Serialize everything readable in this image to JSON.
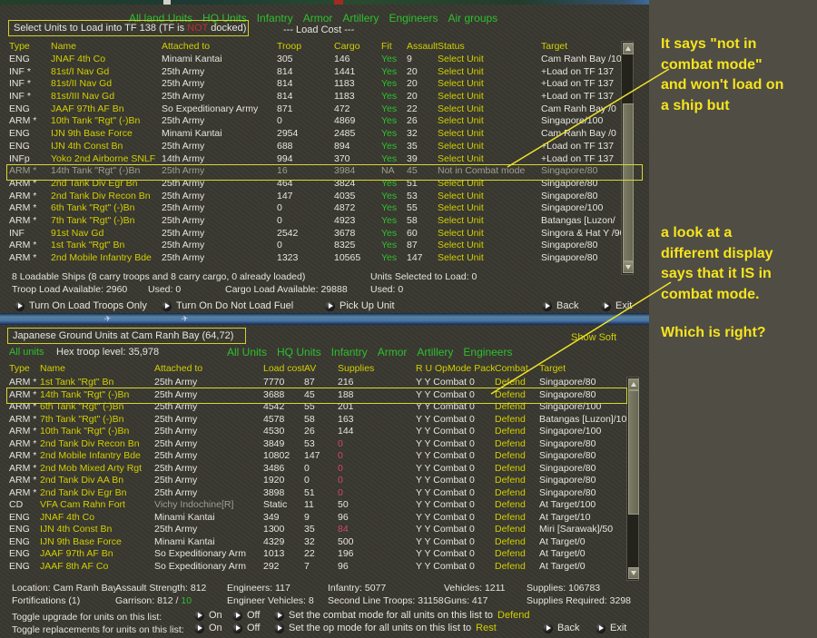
{
  "colors": {
    "panel_bg": "#3a3931",
    "annotation_bg": "#4f4d44",
    "annotation_text": "#f6e41d",
    "game_yellow": "#d2cf00",
    "game_green": "#2fbf2f",
    "game_white": "#e6e6de",
    "alert_red": "#c03030",
    "low_supply_red": "#d04868",
    "disabled_gray": "#9f9f91",
    "highlight_box": "#d8d830",
    "blue_strip": "#4a74a4"
  },
  "top_panel": {
    "menu": [
      "All land Units",
      "HQ Units",
      "Infantry",
      "Armor",
      "Artillery",
      "Engineers",
      "Air groups"
    ],
    "title_pre": "Select Units to Load into TF 138  (TF is ",
    "title_not": "NOT",
    "title_post": " docked)",
    "load_cost_header": "--- Load Cost ---",
    "columns": {
      "type": "Type",
      "name": "Name",
      "attached": "Attached to",
      "troop": "Troop",
      "cargo": "Cargo",
      "fit": "Fit",
      "assault": "Assault",
      "status": "Status",
      "target": "Target"
    },
    "rows": [
      {
        "type": "ENG",
        "name": "JNAF 4th Co",
        "attached": "Minami Kantai",
        "troop": "305",
        "cargo": "146",
        "fit": "Yes",
        "assault": "9",
        "status": "Select Unit",
        "target": "Cam Ranh Bay /10"
      },
      {
        "type": "INF *",
        "name": "81st/I Nav Gd",
        "attached": "25th Army",
        "troop": "814",
        "cargo": "1441",
        "fit": "Yes",
        "assault": "20",
        "status": "Select Unit",
        "target": "+Load on TF 137"
      },
      {
        "type": "INF *",
        "name": "81st/II Nav Gd",
        "attached": "25th Army",
        "troop": "814",
        "cargo": "1183",
        "fit": "Yes",
        "assault": "20",
        "status": "Select Unit",
        "target": "+Load on TF 137"
      },
      {
        "type": "INF *",
        "name": "81st/III Nav Gd",
        "attached": "25th Army",
        "troop": "814",
        "cargo": "1183",
        "fit": "Yes",
        "assault": "20",
        "status": "Select Unit",
        "target": "+Load on TF 137"
      },
      {
        "type": "ENG",
        "name": "JAAF 97th AF Bn",
        "attached": "So Expeditionary Army",
        "troop": "871",
        "cargo": "472",
        "fit": "Yes",
        "assault": "22",
        "status": "Select Unit",
        "target": "Cam Ranh Bay /0"
      },
      {
        "type": "ARM *",
        "name": "10th Tank \"Rgt\" (-)Bn",
        "attached": "25th Army",
        "troop": "0",
        "cargo": "4869",
        "fit": "Yes",
        "assault": "26",
        "status": "Select Unit",
        "target": "Singapore/100"
      },
      {
        "type": "ENG",
        "name": "IJN 9th Base Force",
        "attached": "Minami Kantai",
        "troop": "2954",
        "cargo": "2485",
        "fit": "Yes",
        "assault": "32",
        "status": "Select Unit",
        "target": "Cam Ranh Bay /0"
      },
      {
        "type": "ENG",
        "name": "IJN 4th Const Bn",
        "attached": "25th Army",
        "troop": "688",
        "cargo": "894",
        "fit": "Yes",
        "assault": "35",
        "status": "Select Unit",
        "target": "+Load on TF 137"
      },
      {
        "type": "INFp",
        "name": "Yoko 2nd Airborne SNLF",
        "attached": "14th Army",
        "troop": "994",
        "cargo": "370",
        "fit": "Yes",
        "assault": "39",
        "status": "Select Unit",
        "target": "+Load on TF 137"
      },
      {
        "type": "ARM *",
        "name": "14th Tank \"Rgt\" (-)Bn",
        "attached": "25th Army",
        "troop": "16",
        "cargo": "3984",
        "fit": "NA",
        "assault": "45",
        "status": "Not in Combat mode",
        "target": "Singapore/80",
        "gray": true
      },
      {
        "type": "ARM *",
        "name": "2nd Tank Div Egr Bn",
        "attached": "25th Army",
        "troop": "464",
        "cargo": "3824",
        "fit": "Yes",
        "assault": "51",
        "status": "Select Unit",
        "target": "Singapore/80"
      },
      {
        "type": "ARM *",
        "name": "2nd Tank Div Recon Bn",
        "attached": "25th Army",
        "troop": "147",
        "cargo": "4035",
        "fit": "Yes",
        "assault": "53",
        "status": "Select Unit",
        "target": "Singapore/80"
      },
      {
        "type": "ARM *",
        "name": "6th Tank \"Rgt\" (-)Bn",
        "attached": "25th Army",
        "troop": "0",
        "cargo": "4872",
        "fit": "Yes",
        "assault": "55",
        "status": "Select Unit",
        "target": "Singapore/100"
      },
      {
        "type": "ARM *",
        "name": "7th Tank \"Rgt\" (-)Bn",
        "attached": "25th Army",
        "troop": "0",
        "cargo": "4923",
        "fit": "Yes",
        "assault": "58",
        "status": "Select Unit",
        "target": "Batangas [Luzon/"
      },
      {
        "type": "INF",
        "name": "91st Nav Gd",
        "attached": "25th Army",
        "troop": "2542",
        "cargo": "3678",
        "fit": "Yes",
        "assault": "60",
        "status": "Select Unit",
        "target": "Singora & Hat Y /90"
      },
      {
        "type": "ARM *",
        "name": "1st Tank \"Rgt\" Bn",
        "attached": "25th Army",
        "troop": "0",
        "cargo": "8325",
        "fit": "Yes",
        "assault": "87",
        "status": "Select Unit",
        "target": "Singapore/80"
      },
      {
        "type": "ARM *",
        "name": "2nd Mobile Infantry Bde",
        "attached": "25th Army",
        "troop": "1323",
        "cargo": "10565",
        "fit": "Yes",
        "assault": "147",
        "status": "Select Unit",
        "target": "Singapore/80"
      }
    ],
    "ships_line": "8 Loadable Ships (8 carry troops and 8 carry cargo, 0 already loaded)",
    "selected_line": "Units Selected to Load:  0",
    "troop_avail": "Troop Load Available:  2960",
    "troop_used": "Used:  0",
    "cargo_avail": "Cargo Load Available:  29888",
    "cargo_used": "Used:  0",
    "buttons": [
      "Turn On Load Troops Only",
      "Turn On Do Not Load Fuel",
      "Pick Up Unit",
      "Back",
      "Exit"
    ]
  },
  "bottom_panel": {
    "title": "Japanese Ground Units at Cam Ranh Bay   (64,72)",
    "show_soft": "Show Soft",
    "all_units_link": "All units",
    "hex_troop_level": "Hex troop level: 35,978",
    "menu": [
      "All Units",
      "HQ Units",
      "Infantry",
      "Armor",
      "Artillery",
      "Engineers"
    ],
    "columns": {
      "type": "Type",
      "name": "Name",
      "attached": "Attached to",
      "load": "Load cost",
      "av": "AV",
      "supplies": "Supplies",
      "opmode": "R U OpMode Pack",
      "combat": "Combat",
      "target": "Target"
    },
    "rows": [
      {
        "type": "ARM *",
        "name": "1st Tank \"Rgt\" Bn",
        "attached": "25th Army",
        "load": "7770",
        "av": "87",
        "supplies": "216",
        "opmode": "Y Y Combat 0",
        "combat": "Defend",
        "target": "Singapore/80"
      },
      {
        "type": "ARM *",
        "name": "14th Tank \"Rgt\" (-)Bn",
        "attached": "25th Army",
        "load": "3688",
        "av": "45",
        "supplies": "188",
        "opmode": "Y Y Combat 0",
        "combat": "Defend",
        "target": "Singapore/80"
      },
      {
        "type": "ARM *",
        "name": "6th Tank \"Rgt\" (-)Bn",
        "attached": "25th Army",
        "load": "4542",
        "av": "55",
        "supplies": "201",
        "opmode": "Y Y Combat 0",
        "combat": "Defend",
        "target": "Singapore/100"
      },
      {
        "type": "ARM *",
        "name": "7th Tank \"Rgt\" (-)Bn",
        "attached": "25th Army",
        "load": "4578",
        "av": "58",
        "supplies": "163",
        "opmode": "Y Y Combat 0",
        "combat": "Defend",
        "target": "Batangas [Luzon]/10"
      },
      {
        "type": "ARM *",
        "name": "10th Tank \"Rgt\" (-)Bn",
        "attached": "25th Army",
        "load": "4530",
        "av": "26",
        "supplies": "144",
        "opmode": "Y Y Combat 0",
        "combat": "Defend",
        "target": "Singapore/100"
      },
      {
        "type": "ARM *",
        "name": "2nd Tank Div Recon Bn",
        "attached": "25th Army",
        "load": "3849",
        "av": "53",
        "supplies": "0",
        "supplies_low": true,
        "opmode": "Y Y Combat 0",
        "combat": "Defend",
        "target": "Singapore/80"
      },
      {
        "type": "ARM *",
        "name": "2nd Mobile Infantry Bde",
        "attached": "25th Army",
        "load": "10802",
        "av": "147",
        "supplies": "0",
        "supplies_low": true,
        "opmode": "Y Y Combat 0",
        "combat": "Defend",
        "target": "Singapore/80"
      },
      {
        "type": "ARM *",
        "name": "2nd Mob Mixed Arty Rgt",
        "attached": "25th Army",
        "load": "3486",
        "av": "0",
        "supplies": "0",
        "supplies_low": true,
        "opmode": "Y Y Combat 0",
        "combat": "Defend",
        "target": "Singapore/80"
      },
      {
        "type": "ARM *",
        "name": "2nd Tank Div AA Bn",
        "attached": "25th Army",
        "load": "1920",
        "av": "0",
        "supplies": "0",
        "supplies_low": true,
        "opmode": "Y Y Combat 0",
        "combat": "Defend",
        "target": "Singapore/80"
      },
      {
        "type": "ARM *",
        "name": "2nd Tank Div Egr Bn",
        "attached": "25th Army",
        "load": "3898",
        "av": "51",
        "supplies": "0",
        "supplies_low": true,
        "opmode": "Y Y Combat 0",
        "combat": "Defend",
        "target": "Singapore/80"
      },
      {
        "type": "CD",
        "name": "VFA Cam Rahn Fort",
        "attached": "Vichy Indochine[R]",
        "attached_dim": true,
        "load": "Static",
        "av": "11",
        "supplies": "50",
        "opmode": "Y Y Combat 0",
        "combat": "Defend",
        "target": "At Target/100"
      },
      {
        "type": "ENG",
        "name": "JNAF 4th Co",
        "attached": "Minami Kantai",
        "load": "349",
        "av": "9",
        "supplies": "96",
        "opmode": "Y Y Combat 0",
        "combat": "Defend",
        "target": "At Target/10"
      },
      {
        "type": "ENG",
        "name": "IJN 4th Const Bn",
        "attached": "25th Army",
        "load": "1300",
        "av": "35",
        "supplies": "84",
        "supplies_low": true,
        "opmode": "Y Y Combat 0",
        "combat": "Defend",
        "target": "Miri [Sarawak]/50"
      },
      {
        "type": "ENG",
        "name": "IJN 9th Base Force",
        "attached": "Minami Kantai",
        "load": "4329",
        "av": "32",
        "supplies": "500",
        "opmode": "Y Y Combat 0",
        "combat": "Defend",
        "target": "At Target/0"
      },
      {
        "type": "ENG",
        "name": "JAAF 97th AF Bn",
        "attached": "So Expeditionary Arm",
        "load": "1013",
        "av": "22",
        "supplies": "196",
        "opmode": "Y Y Combat 0",
        "combat": "Defend",
        "target": "At Target/0"
      },
      {
        "type": "ENG",
        "name": "JAAF 8th AF Co",
        "attached": "So Expeditionary Arm",
        "load": "292",
        "av": "7",
        "supplies": "96",
        "opmode": "Y Y Combat 0",
        "combat": "Defend",
        "target": "At Target/0"
      }
    ],
    "stats_row1": [
      "Location: Cam Ranh Bay",
      "Assault Strength: 812",
      "Engineers: 117",
      "Infantry: 5077",
      "Vehicles: 1211",
      "Supplies: 106783"
    ],
    "stats_row2": [
      "Fortifications (1)",
      "Garrison: 812 / ",
      "Engineer Vehicles: 8",
      "Second Line Troops: 31158",
      "Guns: 417",
      "Supplies Required: 3298"
    ],
    "garrison_ok": "10",
    "toggle_upgrade_label": "Toggle upgrade for units on this list:",
    "toggle_replacements_label": "Toggle replacements for units on this list:",
    "on_label": "On",
    "off_label": "Off",
    "set_combat_text": "Set the combat mode for all units on this list to",
    "set_combat_value": "Defend",
    "set_op_text": "Set the op mode for all units on this list to",
    "set_op_value": "Rest",
    "back_label": "Back",
    "exit_label": "Exit"
  },
  "annotation": {
    "block1": [
      "It says \"not in",
      "combat mode\"",
      "and won't load on",
      "a ship but"
    ],
    "block2": [
      "a look at a",
      "different display",
      "says that it IS in",
      "combat mode."
    ],
    "block3": "Which is right?"
  }
}
